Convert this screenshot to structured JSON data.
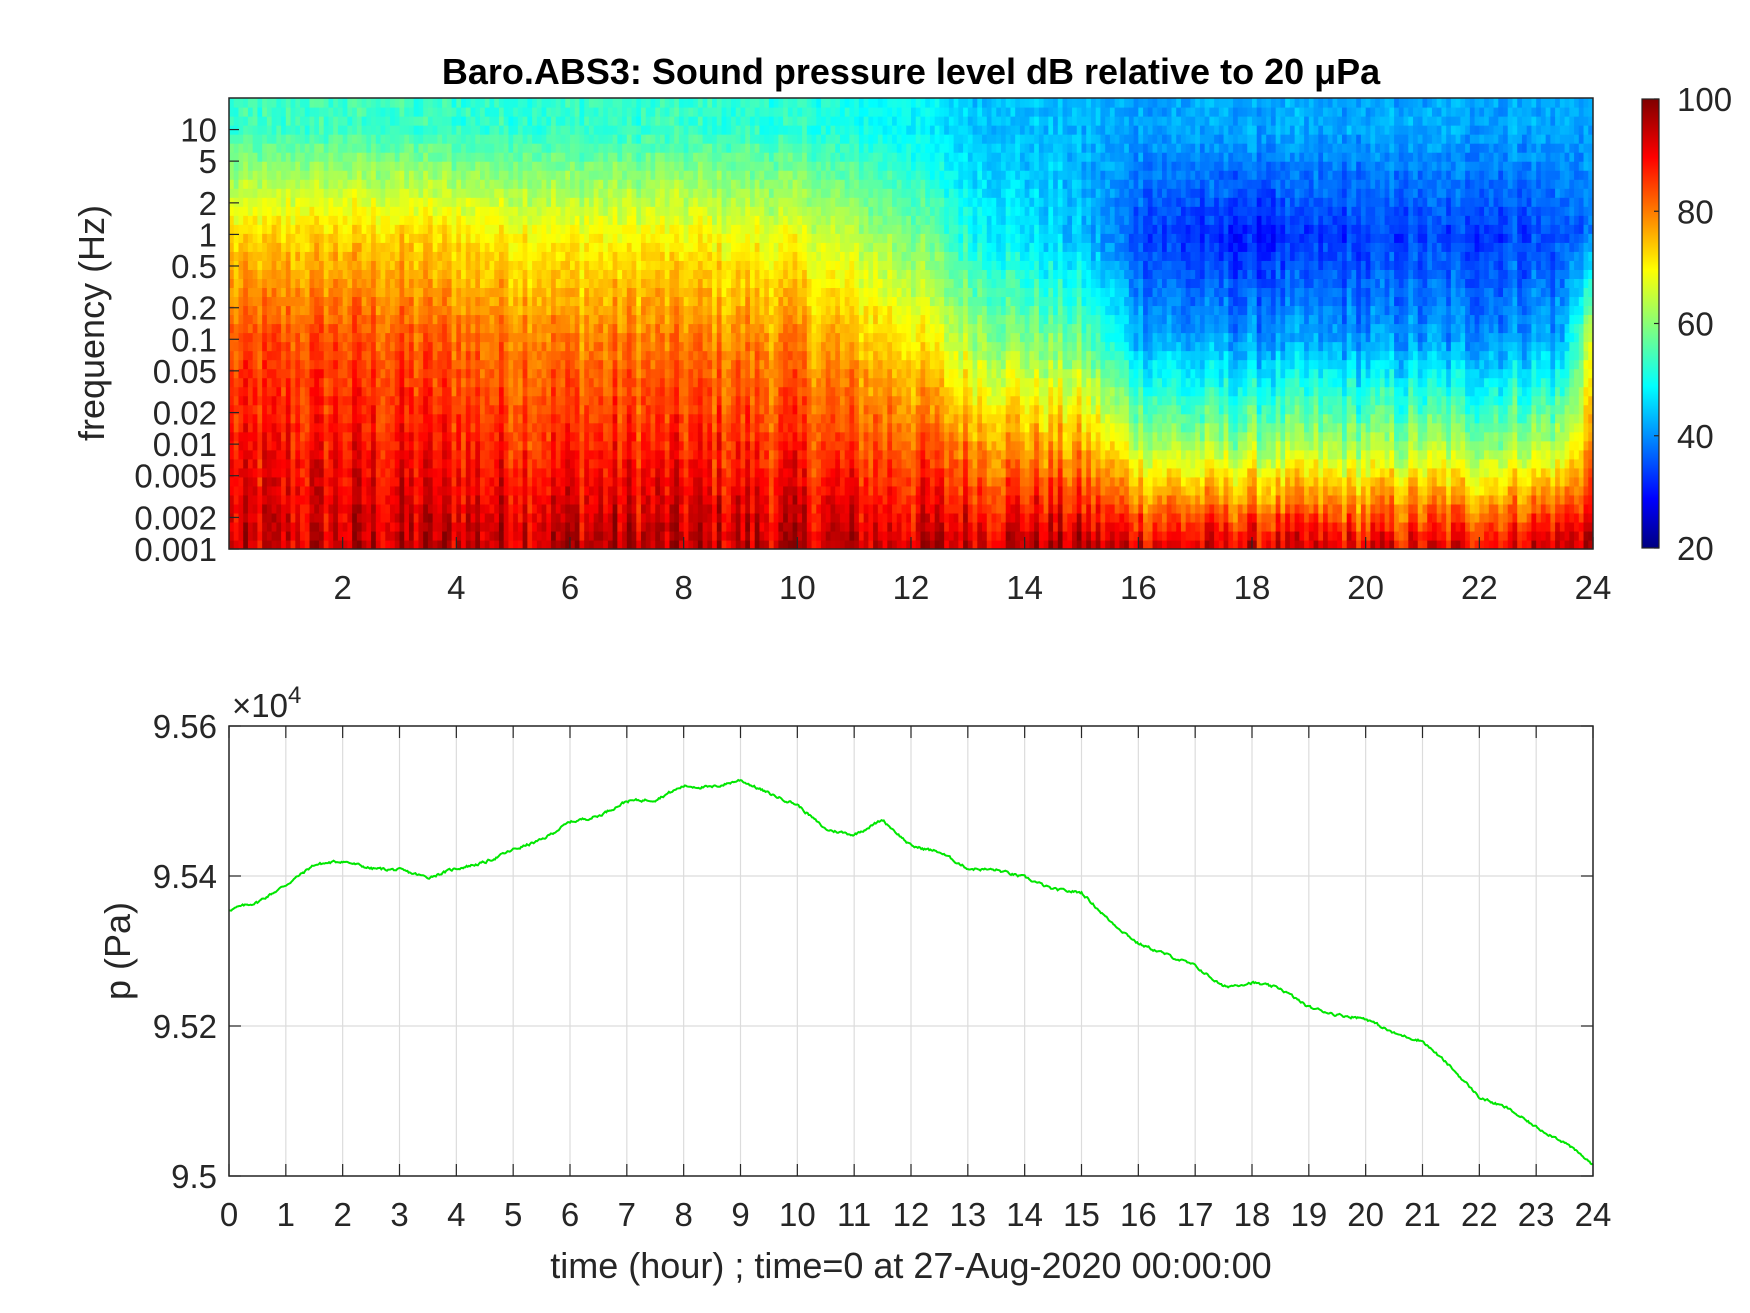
{
  "chart_data": [
    {
      "type": "heatmap",
      "title": "Baro.ABS3: Sound pressure level dB relative to 20 μPa",
      "ylabel": "frequency (Hz)",
      "xlabel": "",
      "y_scale": "log",
      "xlim": [
        0,
        24
      ],
      "ylim": [
        0.001,
        20
      ],
      "x_ticks": [
        2,
        4,
        6,
        8,
        10,
        12,
        14,
        16,
        18,
        20,
        22,
        24
      ],
      "x_tick_labels": [
        "2",
        "4",
        "6",
        "8",
        "10",
        "12",
        "14",
        "16",
        "18",
        "20",
        "22",
        "24"
      ],
      "y_ticks": [
        0.001,
        0.002,
        0.005,
        0.01,
        0.02,
        0.05,
        0.1,
        0.2,
        0.5,
        1,
        2,
        5,
        10
      ],
      "y_tick_labels": [
        "0.001",
        "0.002",
        "0.005",
        "0.01",
        "0.02",
        "0.05",
        "0.1",
        "0.2",
        "0.5",
        "1",
        "2",
        "5",
        "10"
      ],
      "colormap": "jet",
      "colorbar": {
        "range": [
          20,
          100
        ],
        "ticks": [
          20,
          40,
          60,
          80,
          100
        ],
        "tick_labels": [
          "20",
          "40",
          "60",
          "80",
          "100"
        ]
      },
      "profile_hours": [
        0,
        2,
        4,
        6,
        8,
        10,
        12,
        13,
        14,
        15,
        16,
        17,
        18,
        20,
        22,
        23.5,
        24
      ],
      "profile_levels_db": {
        "f_0.001": [
          92,
          94,
          95,
          96,
          95,
          95,
          94,
          95,
          96,
          95,
          94,
          93,
          93,
          92,
          92,
          96,
          98
        ],
        "f_0.01": [
          88,
          89,
          88,
          87,
          87,
          86,
          83,
          80,
          78,
          76,
          65,
          62,
          62,
          62,
          62,
          64,
          80
        ],
        "f_0.1": [
          83,
          84,
          82,
          80,
          80,
          79,
          72,
          64,
          60,
          58,
          45,
          42,
          42,
          42,
          42,
          44,
          70
        ],
        "f_1": [
          72,
          74,
          72,
          70,
          70,
          68,
          60,
          52,
          48,
          45,
          36,
          33,
          32,
          34,
          35,
          36,
          40
        ],
        "f_10": [
          54,
          55,
          54,
          54,
          54,
          53,
          50,
          46,
          45,
          44,
          43,
          43,
          43,
          43,
          43,
          43,
          43
        ]
      }
    },
    {
      "type": "line",
      "xlabel": "time (hour) ; time=0 at 27-Aug-2020 00:00:00",
      "ylabel": "p (Pa)",
      "xlim": [
        0,
        24
      ],
      "ylim": [
        95000,
        95600
      ],
      "grid": true,
      "y_exponent_label": "×10",
      "y_exponent_power": "4",
      "x_ticks": [
        0,
        1,
        2,
        3,
        4,
        5,
        6,
        7,
        8,
        9,
        10,
        11,
        12,
        13,
        14,
        15,
        16,
        17,
        18,
        19,
        20,
        21,
        22,
        23,
        24
      ],
      "x_tick_labels": [
        "0",
        "1",
        "2",
        "3",
        "4",
        "5",
        "6",
        "7",
        "8",
        "9",
        "10",
        "11",
        "12",
        "13",
        "14",
        "15",
        "16",
        "17",
        "18",
        "19",
        "20",
        "21",
        "22",
        "23",
        "24"
      ],
      "y_ticks": [
        95000,
        95200,
        95400,
        95600
      ],
      "y_tick_labels": [
        "9.5",
        "9.52",
        "9.54",
        "9.56"
      ],
      "series_color": "#00e600",
      "x": [
        0,
        0.5,
        1,
        1.5,
        2,
        2.5,
        3,
        3.5,
        4,
        4.5,
        5,
        5.5,
        6,
        6.5,
        7,
        7.5,
        8,
        8.5,
        9,
        9.5,
        10,
        10.5,
        11,
        11.5,
        12,
        12.5,
        13,
        13.5,
        14,
        14.5,
        15,
        15.5,
        16,
        16.5,
        17,
        17.5,
        18,
        18.5,
        19,
        19.5,
        20,
        20.5,
        21,
        21.5,
        22,
        22.5,
        23,
        23.5,
        24
      ],
      "y": [
        95355,
        95365,
        95388,
        95415,
        95420,
        95410,
        95408,
        95398,
        95410,
        95418,
        95435,
        95448,
        95472,
        95480,
        95500,
        95502,
        95520,
        95518,
        95528,
        95510,
        95495,
        95462,
        95455,
        95475,
        95440,
        95432,
        95410,
        95408,
        95398,
        95382,
        95378,
        95340,
        95310,
        95295,
        95280,
        95252,
        95258,
        95250,
        95225,
        95215,
        95210,
        95190,
        95180,
        95145,
        95105,
        95090,
        95065,
        95045,
        95015
      ]
    }
  ]
}
